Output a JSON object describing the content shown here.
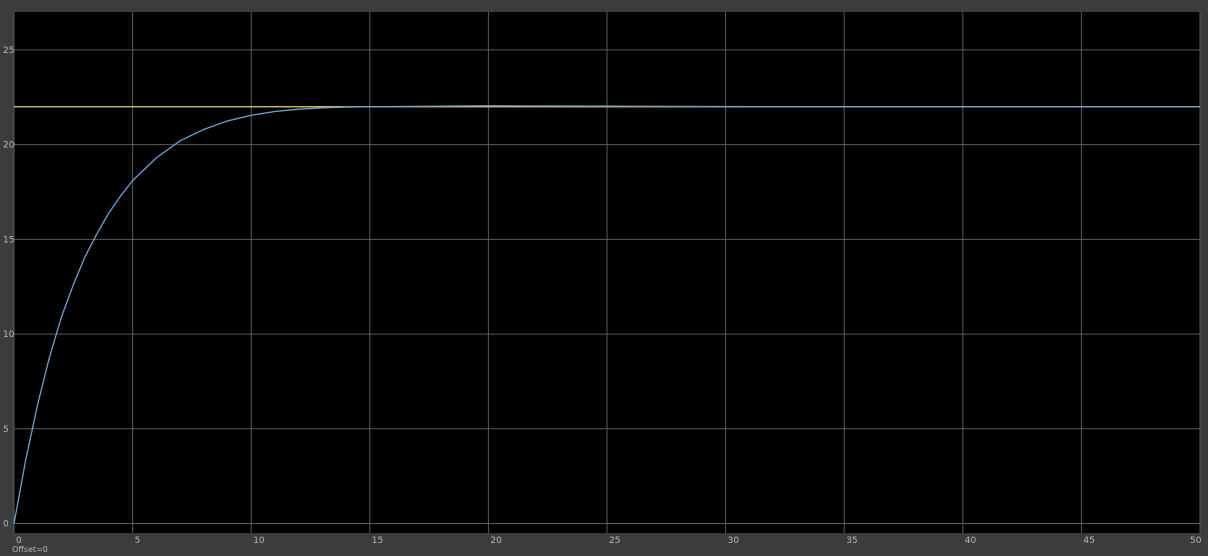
{
  "chart_data": {
    "type": "line",
    "title": "",
    "xlabel": "",
    "ylabel": "",
    "xlim": [
      0,
      50
    ],
    "ylim": [
      -0.5,
      27
    ],
    "grid": true,
    "background": "#000000",
    "frame_color": "#3c3c3c",
    "grid_color": "#5a5a5a",
    "x_ticks": [
      0,
      5,
      10,
      15,
      20,
      25,
      30,
      35,
      40,
      45,
      50
    ],
    "x_tick_labels": [
      "0",
      "5",
      "10",
      "15",
      "20",
      "25",
      "30",
      "35",
      "40",
      "45",
      "50"
    ],
    "y_ticks": [
      0,
      5,
      10,
      15,
      20,
      25
    ],
    "y_tick_labels": [
      "0",
      "5",
      "10",
      "15",
      "20",
      "25"
    ],
    "time_offset_label": "Offset=0",
    "series": [
      {
        "color": "#e8d36a",
        "x": [
          0,
          50
        ],
        "y": [
          22,
          22
        ]
      },
      {
        "color": "#6f9fd0",
        "x": [
          0,
          0.5,
          1,
          1.5,
          2,
          2.5,
          3,
          3.5,
          4,
          4.5,
          5,
          6,
          7,
          8,
          9,
          10,
          11,
          12,
          13,
          14,
          15,
          20,
          25,
          30,
          35,
          40,
          45,
          50
        ],
        "y": [
          0,
          3.4,
          6.3,
          8.8,
          10.9,
          12.6,
          14.1,
          15.3,
          16.4,
          17.3,
          18.1,
          19.3,
          20.2,
          20.8,
          21.25,
          21.55,
          21.75,
          21.87,
          21.94,
          21.98,
          22.0,
          22.05,
          22.03,
          22.01,
          22.0,
          22.0,
          22.0,
          22.0
        ]
      }
    ]
  }
}
